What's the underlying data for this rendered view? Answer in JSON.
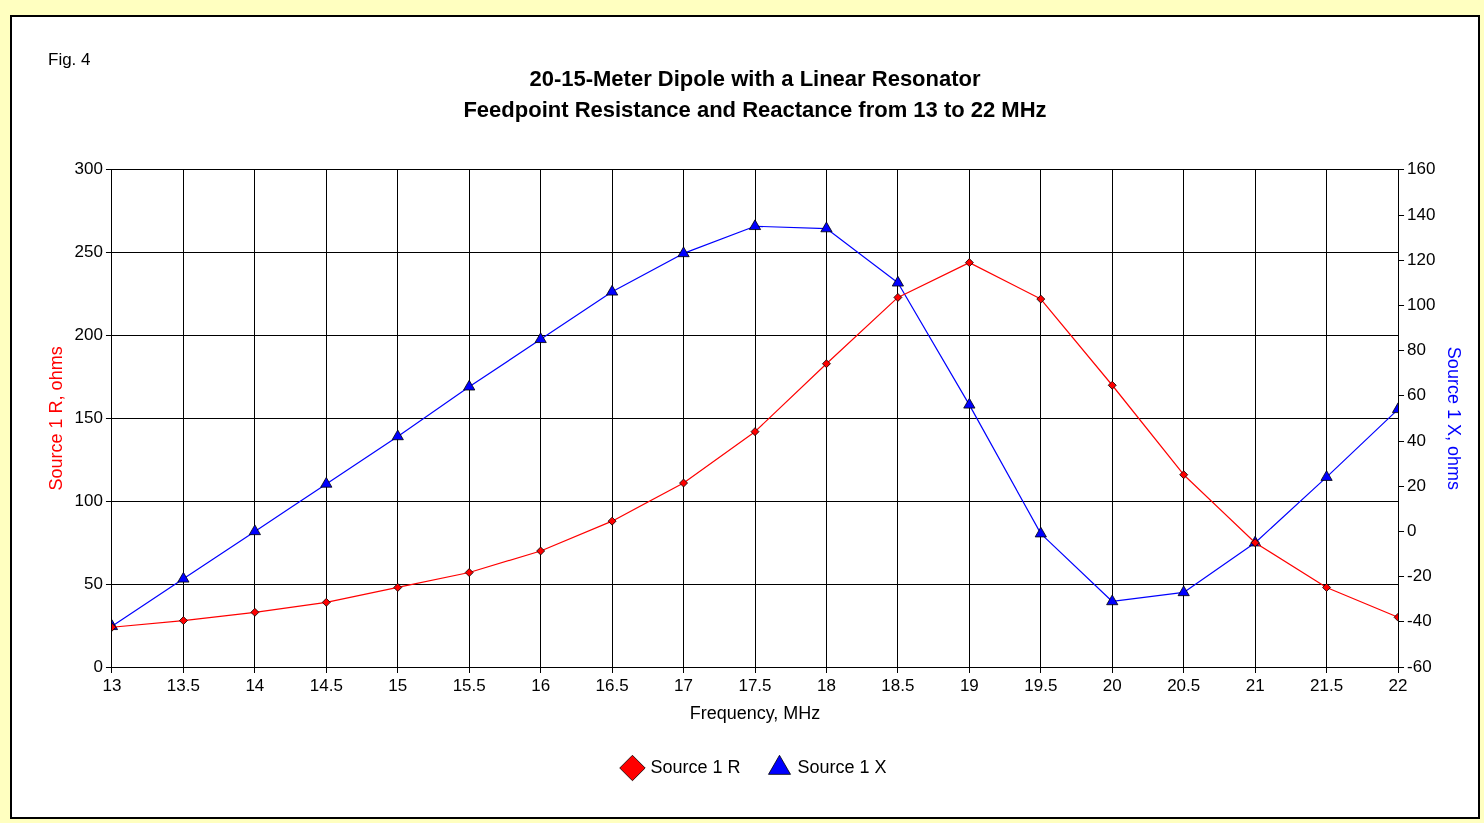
{
  "chart_data": {
    "type": "line",
    "title": "20-15-Meter Dipole with a Linear Resonator",
    "subtitle": "Feedpoint Resistance and Reactance from 13 to 22 MHz",
    "xlabel": "Frequency, MHz",
    "ylabel": "Source 1 R, ohms",
    "y2label": "Source 1 X, ohms",
    "annotations": [
      "Fig. 4"
    ],
    "x": [
      13,
      13.5,
      14,
      14.5,
      15,
      15.5,
      16,
      16.5,
      17,
      17.5,
      18,
      18.5,
      19,
      19.5,
      20,
      20.5,
      21,
      21.5,
      22
    ],
    "series": [
      {
        "name": "Source 1 R",
        "color": "#ff0000",
        "marker": "diamond",
        "values": [
          24,
          28,
          33,
          39,
          48,
          57,
          70,
          88,
          111,
          142,
          183,
          223,
          244,
          222,
          170,
          116,
          75,
          48,
          30
        ]
      },
      {
        "name": "Source 1 X",
        "color": "#0000ff",
        "marker": "triangle",
        "axis": "y2",
        "values": [
          -42,
          -21,
          0,
          21,
          42,
          64,
          85,
          106,
          123,
          135,
          134,
          110,
          56,
          -1,
          -31,
          -27,
          -5,
          24,
          54
        ]
      }
    ],
    "xlim": [
      13,
      22
    ],
    "xticks": [
      13,
      13.5,
      14,
      14.5,
      15,
      15.5,
      16,
      16.5,
      17,
      17.5,
      18,
      18.5,
      19,
      19.5,
      20,
      20.5,
      21,
      21.5,
      22
    ],
    "ylim": [
      0,
      300
    ],
    "yticks": [
      0,
      50,
      100,
      150,
      200,
      250,
      300
    ],
    "y2lim": [
      -60,
      160
    ],
    "y2ticks": [
      -60,
      -40,
      -20,
      0,
      20,
      40,
      60,
      80,
      100,
      120,
      140,
      160
    ],
    "grid": true,
    "legend": "bottom",
    "line_style": "solid"
  }
}
